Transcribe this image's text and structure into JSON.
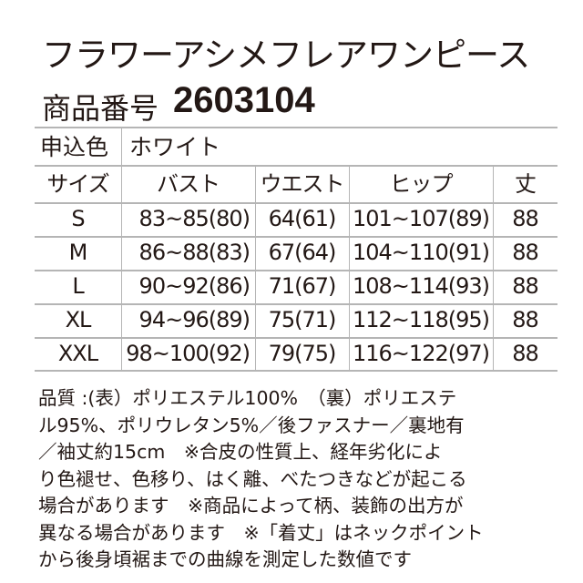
{
  "title": "フラワーアシメフレアワンピース",
  "product_number": {
    "label": "商品番号",
    "value": "2603104"
  },
  "color": {
    "label": "申込色",
    "value": "ホワイト"
  },
  "table": {
    "headers": [
      "サイズ",
      "バスト",
      "ウエスト",
      "ヒップ",
      "丈"
    ],
    "rows": [
      [
        "S",
        "83~85(80)",
        "64(61)",
        "101~107(89)",
        "88"
      ],
      [
        "M",
        "86~88(83)",
        "67(64)",
        "104~110(91)",
        "88"
      ],
      [
        "L",
        "90~92(86)",
        "71(67)",
        "108~114(93)",
        "88"
      ],
      [
        "XL",
        "94~96(89)",
        "75(71)",
        "112~118(95)",
        "88"
      ],
      [
        "XXL",
        "98~100(92)",
        "79(75)",
        "116~122(97)",
        "88"
      ]
    ]
  },
  "notes": [
    "品質 :(表）ポリエステル100%　（裏）ポリエステ",
    "ル95%、ポリウレタン5%／後ファスナー／裏地有",
    "／袖丈約15cm　※合皮の性質上、経年劣化によ",
    "り色褪せ、色移り、はく離、べたつきなどが起こる",
    "場合があります　※商品によって柄、装飾の出方が",
    "異なる場合があります　※「着丈」はネックポイント",
    "から後身頃裾までの曲線を測定した数値です"
  ],
  "colors": {
    "text": "#231815",
    "rule": "#b5b5b5"
  }
}
